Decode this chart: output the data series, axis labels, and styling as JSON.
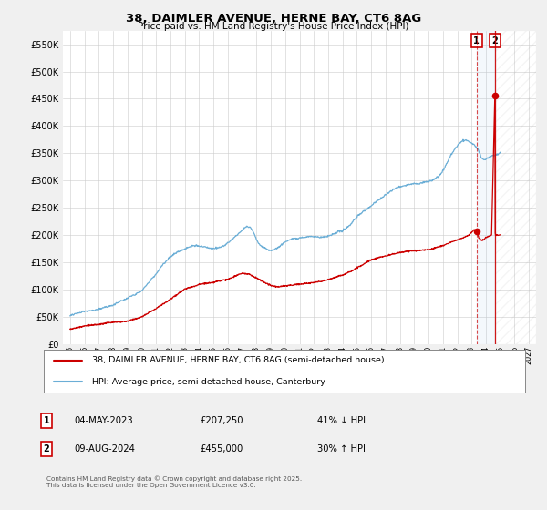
{
  "title": "38, DAIMLER AVENUE, HERNE BAY, CT6 8AG",
  "subtitle": "Price paid vs. HM Land Registry's House Price Index (HPI)",
  "hpi_color": "#6baed6",
  "price_color": "#cc0000",
  "background_color": "#f0f0f0",
  "plot_bg_color": "#ffffff",
  "ylim": [
    0,
    575000
  ],
  "yticks": [
    0,
    50000,
    100000,
    150000,
    200000,
    250000,
    300000,
    350000,
    400000,
    450000,
    500000,
    550000
  ],
  "xlim_start": 1994.5,
  "xlim_end": 2027.5,
  "legend_entries": [
    "38, DAIMLER AVENUE, HERNE BAY, CT6 8AG (semi-detached house)",
    "HPI: Average price, semi-detached house, Canterbury"
  ],
  "sale1_year": 2023.35,
  "sale1_price": 207250,
  "sale2_year": 2024.62,
  "sale2_price": 455000,
  "annotation1_date": "04-MAY-2023",
  "annotation1_price": "£207,250",
  "annotation1_pct": "41% ↓ HPI",
  "annotation2_date": "09-AUG-2024",
  "annotation2_price": "£455,000",
  "annotation2_pct": "30% ↑ HPI",
  "footer": "Contains HM Land Registry data © Crown copyright and database right 2025.\nThis data is licensed under the Open Government Licence v3.0.",
  "grid_color": "#cccccc"
}
